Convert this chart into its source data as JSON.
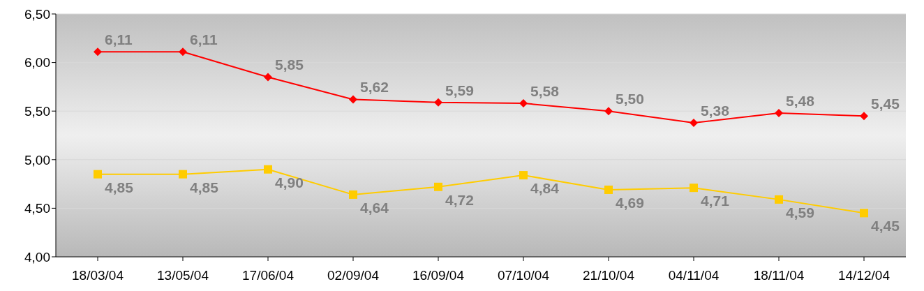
{
  "chart_data": {
    "type": "line",
    "categories": [
      "18/03/04",
      "13/05/04",
      "17/06/04",
      "02/09/04",
      "16/09/04",
      "07/10/04",
      "21/10/04",
      "04/11/04",
      "18/11/04",
      "14/12/04"
    ],
    "series": [
      {
        "color": "#ff0000",
        "marker": "diamond",
        "values": [
          6.11,
          6.11,
          5.85,
          5.62,
          5.59,
          5.58,
          5.5,
          5.38,
          5.48,
          5.45
        ],
        "value_labels": [
          "6,11",
          "6,11",
          "5,85",
          "5,62",
          "5,59",
          "5,58",
          "5,50",
          "5,38",
          "5,48",
          "5,45"
        ]
      },
      {
        "color": "#ffcc00",
        "marker": "square",
        "values": [
          4.85,
          4.85,
          4.9,
          4.64,
          4.72,
          4.84,
          4.69,
          4.71,
          4.59,
          4.45
        ],
        "value_labels": [
          "4,85",
          "4,85",
          "4,90",
          "4,64",
          "4,72",
          "4,84",
          "4,69",
          "4,71",
          "4,59",
          "4,45"
        ]
      }
    ],
    "ylim": [
      4,
      6.5
    ],
    "yticks": [
      {
        "value": 4,
        "label": "4,00"
      },
      {
        "value": 4.5,
        "label": "4,50"
      },
      {
        "value": 5,
        "label": "5,00"
      },
      {
        "value": 5.5,
        "label": "5,50"
      },
      {
        "value": 6,
        "label": "6,00"
      },
      {
        "value": 6.5,
        "label": "6,50"
      }
    ],
    "grid": "y",
    "legend": false
  }
}
